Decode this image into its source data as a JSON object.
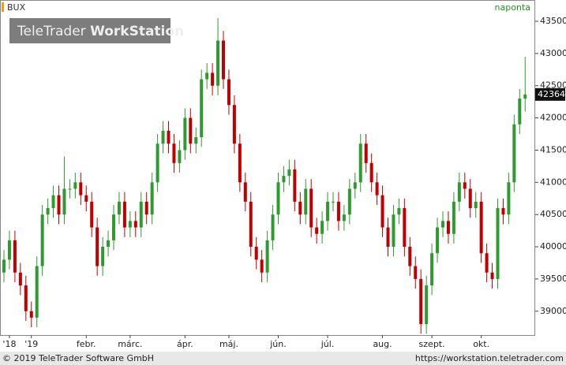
{
  "chart_data": {
    "type": "candlestick",
    "title": "BUX",
    "subtitle": "naponta",
    "categories": [
      null,
      "'18",
      null,
      null,
      null,
      "'19",
      null,
      null,
      null,
      null,
      null,
      null,
      null,
      null,
      null,
      "febr.",
      null,
      null,
      null,
      null,
      null,
      null,
      null,
      "márc.",
      null,
      null,
      null,
      null,
      null,
      null,
      null,
      null,
      null,
      "ápr.",
      null,
      null,
      null,
      null,
      null,
      null,
      null,
      "máj.",
      null,
      null,
      null,
      null,
      null,
      null,
      null,
      null,
      "jún.",
      null,
      null,
      null,
      null,
      null,
      null,
      null,
      null,
      "júl.",
      null,
      null,
      null,
      null,
      null,
      null,
      null,
      null,
      null,
      "aug.",
      null,
      null,
      null,
      null,
      null,
      null,
      null,
      null,
      "szept.",
      null,
      null,
      null,
      null,
      null,
      null,
      null,
      null,
      "okt.",
      null,
      null,
      null,
      null,
      null,
      null,
      null,
      null
    ],
    "open": [
      39600,
      39800,
      40100,
      39600,
      39400,
      39000,
      38900,
      39700,
      40500,
      40600,
      40800,
      40500,
      40900,
      40900,
      41000,
      40800,
      40700,
      40300,
      39700,
      40000,
      40100,
      40500,
      40700,
      40300,
      40400,
      40300,
      40700,
      40500,
      41000,
      41600,
      41800,
      41600,
      41300,
      41500,
      42000,
      41600,
      41700,
      42600,
      42700,
      42500,
      43200,
      42600,
      42200,
      41600,
      41000,
      40700,
      40000,
      39800,
      39600,
      40100,
      40500,
      41000,
      41100,
      41200,
      40700,
      40500,
      40900,
      40300,
      40200,
      40400,
      40700,
      40700,
      40400,
      40500,
      40900,
      41000,
      41600,
      41300,
      41000,
      40800,
      40300,
      40000,
      40500,
      40600,
      40000,
      39700,
      39500,
      38800,
      39400,
      39900,
      40300,
      40400,
      40200,
      40700,
      41000,
      40900,
      40600,
      40700,
      39900,
      39600,
      39500,
      40600,
      40500,
      41000,
      41900,
      42300
    ],
    "high": [
      39950,
      40250,
      40250,
      39750,
      39550,
      39150,
      39850,
      40650,
      40750,
      40950,
      40950,
      41400,
      41050,
      41150,
      41150,
      40950,
      40850,
      40450,
      40150,
      40250,
      40650,
      40850,
      40850,
      40550,
      40550,
      40850,
      40850,
      41150,
      41750,
      41950,
      41950,
      41750,
      41650,
      42150,
      42150,
      41850,
      42750,
      42850,
      42850,
      43550,
      43350,
      42750,
      42350,
      41750,
      41150,
      40850,
      40150,
      39950,
      40250,
      40650,
      41150,
      41250,
      41350,
      41350,
      40850,
      41050,
      41050,
      40450,
      40550,
      40850,
      40850,
      40850,
      40650,
      41050,
      41150,
      41750,
      41750,
      41450,
      41150,
      40950,
      40450,
      40650,
      40750,
      40750,
      40150,
      39850,
      39650,
      39550,
      40050,
      40450,
      40550,
      40550,
      40850,
      41150,
      41150,
      41050,
      40850,
      40850,
      40050,
      39750,
      40750,
      40750,
      41150,
      42050,
      42450,
      42950
    ],
    "low": [
      39450,
      39650,
      39450,
      39250,
      38850,
      38750,
      38750,
      39550,
      40350,
      40450,
      40350,
      40350,
      40750,
      40750,
      40650,
      40550,
      40150,
      39550,
      39550,
      39850,
      39950,
      40350,
      40150,
      40150,
      40150,
      40150,
      40350,
      40350,
      40850,
      41450,
      41450,
      41150,
      41150,
      41350,
      41450,
      41450,
      41550,
      42450,
      42350,
      42350,
      42450,
      42050,
      41450,
      40850,
      40550,
      39850,
      39650,
      39450,
      39450,
      39950,
      40350,
      40850,
      40950,
      40550,
      40350,
      40350,
      40150,
      40050,
      40050,
      40250,
      40550,
      40250,
      40250,
      40350,
      40750,
      40850,
      41150,
      40850,
      40650,
      40150,
      39850,
      39850,
      40350,
      39850,
      39550,
      39350,
      38650,
      38650,
      39250,
      39750,
      40150,
      40050,
      40050,
      40550,
      40750,
      40450,
      40450,
      39750,
      39450,
      39350,
      39350,
      40350,
      40350,
      40850,
      41750,
      42100
    ],
    "close": [
      39800,
      40100,
      39600,
      39400,
      39000,
      38900,
      39700,
      40500,
      40600,
      40800,
      40500,
      40900,
      40900,
      41000,
      40800,
      40700,
      40300,
      39700,
      40000,
      40100,
      40500,
      40700,
      40300,
      40400,
      40300,
      40700,
      40500,
      41000,
      41600,
      41800,
      41600,
      41300,
      41500,
      42000,
      41600,
      41700,
      42600,
      42700,
      42500,
      43200,
      42600,
      42200,
      41600,
      41000,
      40700,
      40000,
      39800,
      39600,
      40100,
      40500,
      41000,
      41100,
      41200,
      40700,
      40500,
      40900,
      40300,
      40200,
      40400,
      40700,
      40700,
      40400,
      40500,
      40900,
      41000,
      41600,
      41300,
      41000,
      40800,
      40300,
      40000,
      40500,
      40600,
      40000,
      39700,
      39500,
      38800,
      39400,
      39900,
      40300,
      40400,
      40200,
      40700,
      41000,
      40900,
      40600,
      40700,
      39900,
      39600,
      39500,
      40600,
      40500,
      41000,
      41900,
      42300,
      42364
    ],
    "up_color": "#2f9a2f",
    "down_color": "#c00000",
    "ylim": [
      38630,
      43830
    ],
    "yticks": [
      39000,
      39500,
      40000,
      40500,
      41000,
      41500,
      42000,
      42500,
      43000,
      43500
    ]
  },
  "watermark": {
    "brand": "TeleTrader",
    "product": "WorkStation"
  },
  "footer": {
    "copyright": "© 2019 TeleTrader Software GmbH",
    "url": "https://workstation.teletrader.com"
  }
}
